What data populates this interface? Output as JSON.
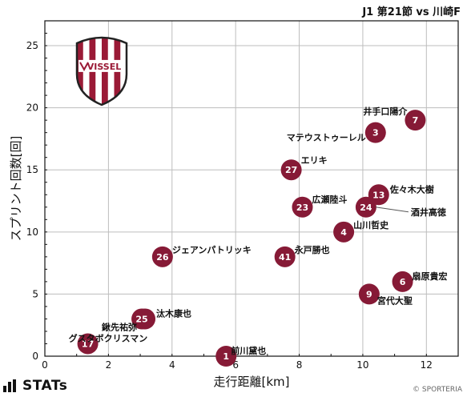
{
  "header": {
    "title": "J1 第21節 vs 川崎F"
  },
  "club_logo": {
    "text": "VISSEL",
    "colors": {
      "red": "#9a1a36",
      "white": "#ffffff"
    }
  },
  "footer": {
    "brand": "STATs",
    "credit": "© SPORTERIA"
  },
  "colors": {
    "point": "#861a36",
    "grid": "#bdbdbd",
    "axis": "#111111"
  },
  "chart_data": {
    "type": "scatter",
    "xlabel": "走行距離[km]",
    "ylabel": "スプリント回数[回]",
    "xlim": [
      0,
      13
    ],
    "ylim": [
      0,
      27
    ],
    "xticks": [
      0,
      2,
      4,
      6,
      8,
      10,
      12
    ],
    "yticks": [
      0,
      5,
      10,
      15,
      20,
      25
    ],
    "grid": true,
    "points": [
      {
        "number": "7",
        "name": "井手口陽介",
        "x": 11.65,
        "y": 19
      },
      {
        "number": "3",
        "name": "マテウストゥーレル",
        "x": 10.4,
        "y": 18
      },
      {
        "number": "27",
        "name": "エリキ",
        "x": 7.75,
        "y": 15
      },
      {
        "number": "13",
        "name": "佐々木大樹",
        "x": 10.5,
        "y": 13
      },
      {
        "number": "23",
        "name": "広瀬陸斗",
        "x": 8.1,
        "y": 12
      },
      {
        "number": "24",
        "name": "酒井高徳",
        "x": 10.1,
        "y": 12
      },
      {
        "number": "4",
        "name": "山川哲史",
        "x": 9.4,
        "y": 10
      },
      {
        "number": "26",
        "name": "ジェアンパトリッキ",
        "x": 3.7,
        "y": 8
      },
      {
        "number": "41",
        "name": "永戸勝也",
        "x": 7.55,
        "y": 8
      },
      {
        "number": "6",
        "name": "扇原貴宏",
        "x": 11.25,
        "y": 6
      },
      {
        "number": "9",
        "name": "宮代大聖",
        "x": 10.2,
        "y": 5
      },
      {
        "number": "14",
        "name": "汰木康也",
        "x": 3.15,
        "y": 3
      },
      {
        "number": "25",
        "name": "鍬先祐弥",
        "x": 3.05,
        "y": 3
      },
      {
        "number": "17",
        "name": "グスタボクリスマン",
        "x": 1.35,
        "y": 1
      },
      {
        "number": "1",
        "name": "前川黛也",
        "x": 5.7,
        "y": 0
      }
    ]
  }
}
